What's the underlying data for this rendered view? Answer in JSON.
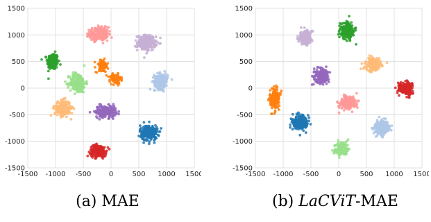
{
  "chart_data": [
    {
      "type": "scatter",
      "caption": {
        "prefix": "(a) ",
        "italic": "",
        "suffix": "MAE"
      },
      "xlim": [
        -1500,
        1500
      ],
      "ylim": [
        -1500,
        1500
      ],
      "x_ticks": [
        -1500,
        -1000,
        -500,
        0,
        500,
        1000,
        1500
      ],
      "y_ticks": [
        -1500,
        -1000,
        -500,
        0,
        500,
        1000,
        1500
      ],
      "grid": true,
      "clusters": [
        {
          "color": "#2ca02c",
          "center": [
            -1050,
            500
          ],
          "spread": [
            90,
            140
          ],
          "n": 230
        },
        {
          "color": "#ff9896",
          "center": [
            -220,
            1020
          ],
          "spread": [
            150,
            110
          ],
          "n": 220
        },
        {
          "color": "#c5b0d5",
          "center": [
            640,
            850
          ],
          "spread": [
            150,
            130
          ],
          "n": 230
        },
        {
          "color": "#ff7f0e",
          "center": [
            -160,
            420
          ],
          "spread": [
            100,
            110
          ],
          "n": 90
        },
        {
          "color": "#ff7f0e",
          "center": [
            80,
            170
          ],
          "spread": [
            90,
            80
          ],
          "n": 110
        },
        {
          "color": "#98df8a",
          "center": [
            -600,
            100
          ],
          "spread": [
            130,
            170
          ],
          "n": 220
        },
        {
          "color": "#aec7e8",
          "center": [
            900,
            130
          ],
          "spread": [
            110,
            130
          ],
          "n": 220
        },
        {
          "color": "#ffbb78",
          "center": [
            -870,
            -380
          ],
          "spread": [
            130,
            130
          ],
          "n": 220
        },
        {
          "color": "#9467bd",
          "center": [
            -100,
            -440
          ],
          "spread": [
            170,
            100
          ],
          "n": 220
        },
        {
          "color": "#1f77b4",
          "center": [
            680,
            -840
          ],
          "spread": [
            140,
            130
          ],
          "n": 240
        },
        {
          "color": "#d62728",
          "center": [
            -230,
            -1180
          ],
          "spread": [
            130,
            100
          ],
          "n": 230
        }
      ]
    },
    {
      "type": "scatter",
      "caption": {
        "prefix": "(b) ",
        "italic": "LaCViT",
        "suffix": "-MAE"
      },
      "xlim": [
        -1500,
        1500
      ],
      "ylim": [
        -1500,
        1500
      ],
      "x_ticks": [
        -1500,
        -1000,
        -500,
        0,
        500,
        1000,
        1500
      ],
      "y_ticks": [
        -1500,
        -1000,
        -500,
        0,
        500,
        1000,
        1500
      ],
      "grid": true,
      "clusters": [
        {
          "color": "#c5b0d5",
          "center": [
            -600,
            950
          ],
          "spread": [
            110,
            110
          ],
          "n": 200
        },
        {
          "color": "#2ca02c",
          "center": [
            150,
            1080
          ],
          "spread": [
            110,
            140
          ],
          "n": 220
        },
        {
          "color": "#ff7f0e",
          "center": [
            -1150,
            -200
          ],
          "spread": [
            80,
            180
          ],
          "n": 180
        },
        {
          "color": "#9467bd",
          "center": [
            -310,
            220
          ],
          "spread": [
            120,
            130
          ],
          "n": 200
        },
        {
          "color": "#ffbb78",
          "center": [
            620,
            450
          ],
          "spread": [
            120,
            110
          ],
          "n": 200
        },
        {
          "color": "#d62728",
          "center": [
            1200,
            0
          ],
          "spread": [
            110,
            100
          ],
          "n": 220
        },
        {
          "color": "#ff9896",
          "center": [
            160,
            -270
          ],
          "spread": [
            140,
            120
          ],
          "n": 200
        },
        {
          "color": "#1f77b4",
          "center": [
            -700,
            -640
          ],
          "spread": [
            120,
            130
          ],
          "n": 220
        },
        {
          "color": "#aec7e8",
          "center": [
            780,
            -740
          ],
          "spread": [
            130,
            120
          ],
          "n": 220
        },
        {
          "color": "#98df8a",
          "center": [
            40,
            -1150
          ],
          "spread": [
            110,
            120
          ],
          "n": 160
        }
      ]
    }
  ]
}
